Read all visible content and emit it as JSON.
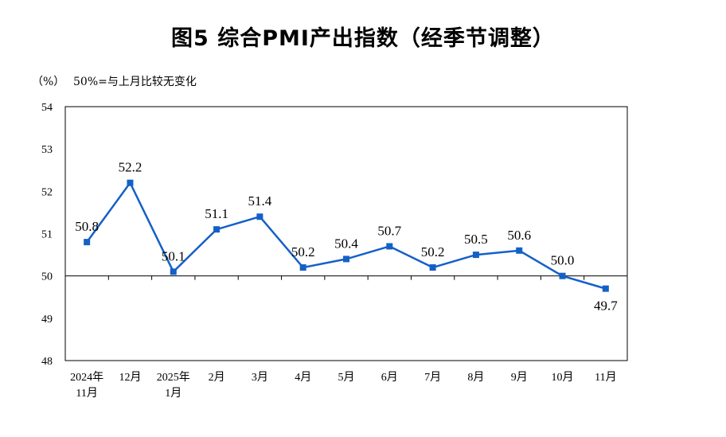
{
  "chart_data": {
    "type": "line",
    "title": "图5  综合PMI产出指数（经季节调整）",
    "unit_label": "（%）",
    "annotation": "50%=与上月比较无变化",
    "categories": [
      [
        "2024年",
        "11月"
      ],
      [
        "12月"
      ],
      [
        "2025年",
        "1月"
      ],
      [
        "2月"
      ],
      [
        "3月"
      ],
      [
        "4月"
      ],
      [
        "5月"
      ],
      [
        "6月"
      ],
      [
        "7月"
      ],
      [
        "8月"
      ],
      [
        "9月"
      ],
      [
        "10月"
      ],
      [
        "11月"
      ]
    ],
    "values": [
      50.8,
      52.2,
      50.1,
      51.1,
      51.4,
      50.2,
      50.4,
      50.7,
      50.2,
      50.5,
      50.6,
      50.0,
      49.7
    ],
    "data_labels": [
      "50.8",
      "52.2",
      "50.1",
      "51.1",
      "51.4",
      "50.2",
      "50.4",
      "50.7",
      "50.2",
      "50.5",
      "50.6",
      "50.0",
      "49.7"
    ],
    "ylim": [
      48,
      54
    ],
    "yticks": [
      "48",
      "49",
      "50",
      "51",
      "52",
      "53",
      "54"
    ],
    "baseline": 50,
    "grid": false,
    "line_color": "#1560c8"
  }
}
